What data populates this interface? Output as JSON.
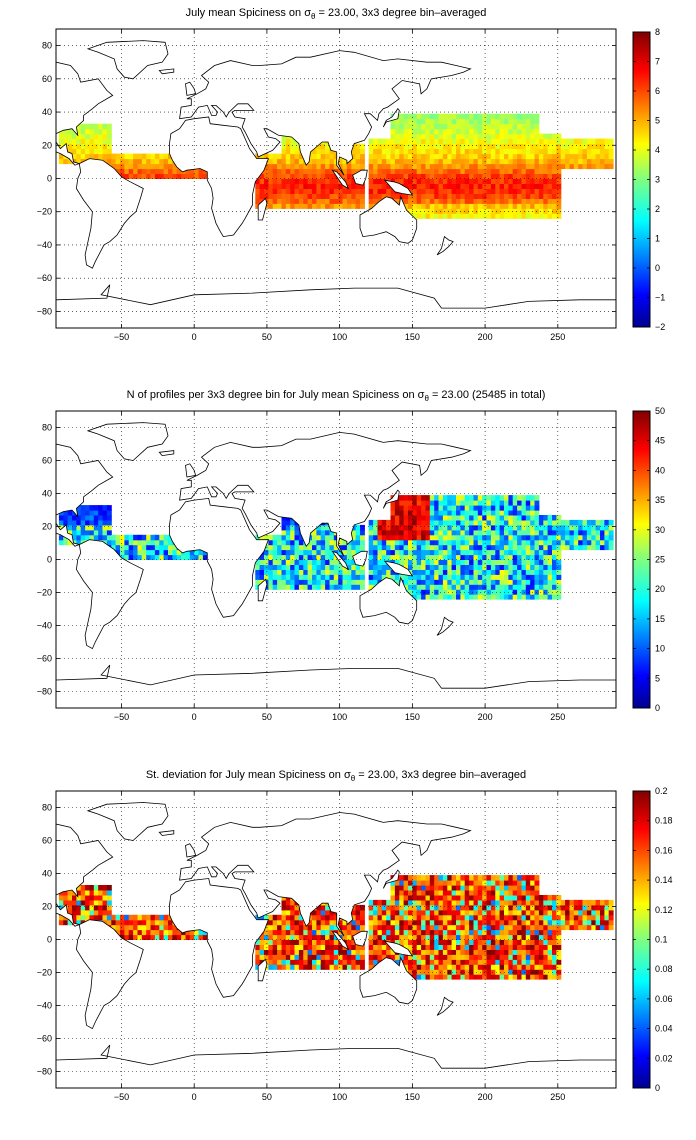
{
  "chart_data": [
    {
      "type": "heatmap",
      "title_prefix": "July mean Spiciness on σ",
      "title_sub": "θ",
      "title_suffix": " = 23.00, 3x3 degree bin–averaged",
      "xticks": [
        -50,
        0,
        50,
        100,
        150,
        200,
        250
      ],
      "yticks": [
        80,
        60,
        40,
        20,
        0,
        -20,
        -40,
        -60,
        -80
      ],
      "xlim": [
        -95,
        290
      ],
      "ylim": [
        -90,
        90
      ],
      "grid": true,
      "colorbar": {
        "ticks": [
          8,
          7,
          6,
          5,
          4,
          3,
          2,
          1,
          0,
          -1,
          -2
        ],
        "range": [
          -2,
          8
        ]
      }
    },
    {
      "type": "heatmap",
      "title_prefix": "N of profiles per 3x3 degree bin for July mean Spiciness on σ",
      "title_sub": "θ",
      "title_suffix": " = 23.00 (25485 in total)",
      "xticks": [
        -50,
        0,
        50,
        100,
        150,
        200,
        250
      ],
      "yticks": [
        80,
        60,
        40,
        20,
        0,
        -20,
        -40,
        -60,
        -80
      ],
      "xlim": [
        -95,
        290
      ],
      "ylim": [
        -90,
        90
      ],
      "grid": true,
      "colorbar": {
        "ticks": [
          50,
          45,
          40,
          35,
          30,
          25,
          20,
          15,
          10,
          5,
          0
        ],
        "range": [
          0,
          50
        ]
      }
    },
    {
      "type": "heatmap",
      "title_prefix": "St. deviation for July mean Spiciness on σ",
      "title_sub": "θ",
      "title_suffix": " = 23.00, 3x3 degree bin–averaged",
      "xticks": [
        -50,
        0,
        50,
        100,
        150,
        200,
        250
      ],
      "yticks": [
        80,
        60,
        40,
        20,
        0,
        -20,
        -40,
        -60,
        -80
      ],
      "xlim": [
        -95,
        290
      ],
      "ylim": [
        -90,
        90
      ],
      "grid": true,
      "colorbar": {
        "ticks": [
          0.2,
          0.18,
          0.16,
          0.14,
          0.12,
          0.1,
          0.08,
          0.06,
          0.04,
          0.02,
          0
        ],
        "range": [
          0,
          0.2
        ]
      }
    }
  ],
  "colormap": "jet"
}
